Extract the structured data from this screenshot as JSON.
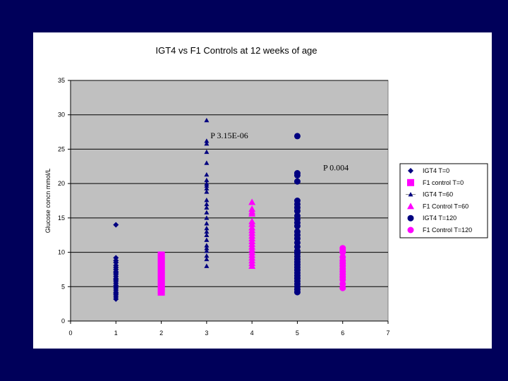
{
  "chart_data": {
    "type": "scatter",
    "title": "IGT4 vs F1 Controls at 12 weeks of age",
    "xlabel": "",
    "ylabel": "Glucose concn mmol/L",
    "xlim": [
      0,
      7
    ],
    "ylim": [
      0,
      35
    ],
    "x_ticks": [
      "0",
      "1",
      "2",
      "3",
      "4",
      "5",
      "6",
      "7"
    ],
    "y_ticks": [
      "0",
      "5",
      "10",
      "15",
      "20",
      "25",
      "30",
      "35"
    ],
    "grid": "horizontal",
    "legend_position": "right",
    "plot_background": "#c0c0c0",
    "annotations": [
      {
        "text": "P 3.15E-06",
        "x": 3.5,
        "y": 27
      },
      {
        "text": "P 0.004",
        "x": 5.85,
        "y": 22.3
      }
    ],
    "series": [
      {
        "name": "IGT4 T=0",
        "marker": "diamond",
        "color": "#000080",
        "x": 1,
        "values": [
          14,
          9.2,
          8.8,
          8.5,
          8.1,
          7.8,
          7.5,
          7.2,
          7.0,
          6.8,
          6.5,
          6.2,
          6.0,
          5.8,
          5.5,
          5.2,
          5.0,
          4.8,
          4.5,
          4.2,
          4.0,
          3.8,
          3.5,
          3.2
        ]
      },
      {
        "name": "F1 control T=0",
        "marker": "square",
        "color": "#ff00ff",
        "x": 2,
        "values": [
          9.6,
          9.3,
          9.0,
          8.7,
          8.4,
          8.1,
          7.8,
          7.5,
          7.2,
          6.9,
          6.6,
          6.3,
          6.0,
          5.7,
          5.4,
          5.1,
          4.8,
          4.5,
          4.2
        ]
      },
      {
        "name": "IGT4 T=60",
        "marker": "triangle-small",
        "color": "#000080",
        "x": 3,
        "values": [
          29.2,
          26.2,
          25.8,
          24.6,
          23.0,
          21.3,
          20.5,
          20.0,
          19.7,
          19.3,
          18.8,
          17.6,
          17.0,
          16.5,
          15.8,
          15.0,
          14.2,
          13.5,
          13.0,
          12.5,
          11.8,
          11.0,
          10.6,
          10.2,
          9.5,
          9.0,
          8.0
        ]
      },
      {
        "name": "F1 Control T=60",
        "marker": "triangle",
        "color": "#ff00ff",
        "x": 4,
        "values": [
          17.3,
          16.3,
          15.9,
          15.6,
          14.5,
          14.1,
          13.6,
          13.2,
          12.8,
          12.4,
          12.0,
          11.6,
          11.2,
          10.8,
          10.4,
          10.0,
          9.6,
          9.2,
          8.8,
          8.4,
          8.0
        ]
      },
      {
        "name": "IGT4 T=120",
        "marker": "circle",
        "color": "#000080",
        "x": 5,
        "values": [
          26.9,
          21.5,
          21.2,
          20.3,
          17.5,
          17.0,
          16.5,
          16.0,
          15.3,
          14.8,
          14.3,
          13.8,
          13.0,
          12.5,
          12.0,
          11.4,
          10.8,
          10.2,
          9.8,
          9.4,
          9.0,
          8.6,
          8.2,
          7.8,
          7.4,
          7.0,
          6.6,
          6.2,
          5.8,
          5.4,
          5.0,
          4.6,
          4.2
        ]
      },
      {
        "name": "F1 Control T=120",
        "marker": "circle",
        "color": "#ff00ff",
        "x": 6,
        "values": [
          10.6,
          10.3,
          10.0,
          9.3,
          8.8,
          8.4,
          8.0,
          7.6,
          7.2,
          6.8,
          6.4,
          6.0,
          5.4,
          4.8
        ]
      }
    ]
  }
}
